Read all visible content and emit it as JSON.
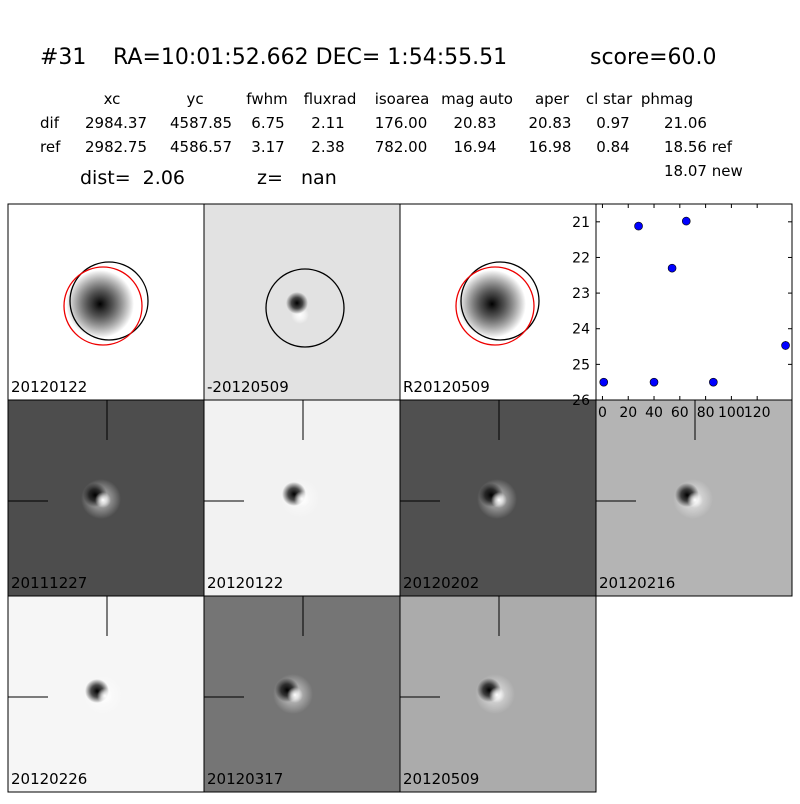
{
  "header": {
    "object_id": "#31",
    "coordinates": "RA=10:01:52.662 DEC= 1:54:55.51",
    "score": "score=60.0"
  },
  "table": {
    "columns": [
      "xc",
      "yc",
      "fwhm",
      "fluxrad",
      "isoarea",
      "mag auto",
      "aper",
      "cl star",
      "phmag"
    ],
    "rows": [
      [
        "dif",
        "2984.37",
        "4587.85",
        "6.75",
        "2.11",
        "176.00",
        "20.83",
        "20.83",
        "0.97",
        "21.06"
      ],
      [
        "ref",
        "2982.75",
        "4586.57",
        "3.17",
        "2.38",
        "782.00",
        "16.94",
        "16.98",
        "0.84",
        "18.56 ref"
      ]
    ],
    "extra": "18.07 new"
  },
  "distance": "dist=  2.06",
  "redshift": "z=   nan",
  "panels": [
    "20120122",
    "-20120509",
    "R20120509",
    "20111227",
    "20120122",
    "20120202",
    "20120216",
    "20120226",
    "20120317",
    "20120509"
  ],
  "chart_data": {
    "type": "scatter",
    "x": [
      1,
      28,
      40,
      54,
      65,
      86,
      142
    ],
    "values": [
      25.5,
      21.12,
      25.5,
      22.3,
      20.98,
      25.5,
      24.47
    ],
    "errors": [
      0.1,
      0.05,
      0.1,
      0.05,
      0.05,
      0.1,
      0.12
    ],
    "color": "#0000ff",
    "xlim": [
      -5,
      147
    ],
    "xticks": [
      0,
      20,
      40,
      60,
      80,
      100,
      120
    ],
    "ylim": [
      26,
      20.5
    ],
    "yticks": [
      21,
      22,
      23,
      24,
      25,
      26
    ]
  }
}
